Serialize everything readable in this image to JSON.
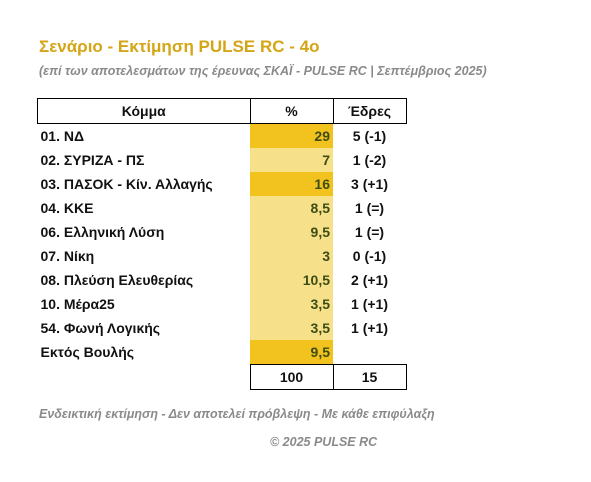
{
  "title": "Σενάριο - Εκτίμηση PULSE RC  -  4ο",
  "subtitle": "(επί των αποτελεσμάτων της έρευνας ΣΚΑΪ - PULSE RC  |  Σεπτέμβριος 2025)",
  "table": {
    "headers": [
      "Κόμμα",
      "%",
      "Έδρες"
    ],
    "rows": [
      {
        "party": "01. ΝΔ",
        "pct": "29",
        "seats": "5 (-1)"
      },
      {
        "party": "02. ΣΥΡΙΖΑ - ΠΣ",
        "pct": "7",
        "seats": "1 (-2)"
      },
      {
        "party": "03. ΠΑΣΟΚ - Κίν. Αλλαγής",
        "pct": "16",
        "seats": "3 (+1)"
      },
      {
        "party": "04. ΚΚΕ",
        "pct": "8,5",
        "seats": "1 (=)"
      },
      {
        "party": "06. Ελληνική Λύση",
        "pct": "9,5",
        "seats": "1 (=)"
      },
      {
        "party": "07. Νίκη",
        "pct": "3",
        "seats": "0 (-1)"
      },
      {
        "party": "08. Πλεύση Ελευθερίας",
        "pct": "10,5",
        "seats": "2 (+1)"
      },
      {
        "party": "10. Μέρα25",
        "pct": "3,5",
        "seats": "1 (+1)"
      },
      {
        "party": "54. Φωνή Λογικής",
        "pct": "3,5",
        "seats": "1 (+1)"
      },
      {
        "party": "Εκτός Βουλής",
        "pct": "9,5",
        "seats": ""
      }
    ],
    "totals": {
      "pct": "100",
      "seats": "15"
    }
  },
  "colors": {
    "title": "#d4a514",
    "highlight_dark": "#f2c21f",
    "highlight_light": "#f6e08a",
    "muted_text": "#8a8a8a"
  },
  "footnote": "Ενδεικτική εκτίμηση - Δεν αποτελεί πρόβλεψη - Με κάθε επιφύλαξη",
  "copyright": "©  2025  PULSE RC"
}
